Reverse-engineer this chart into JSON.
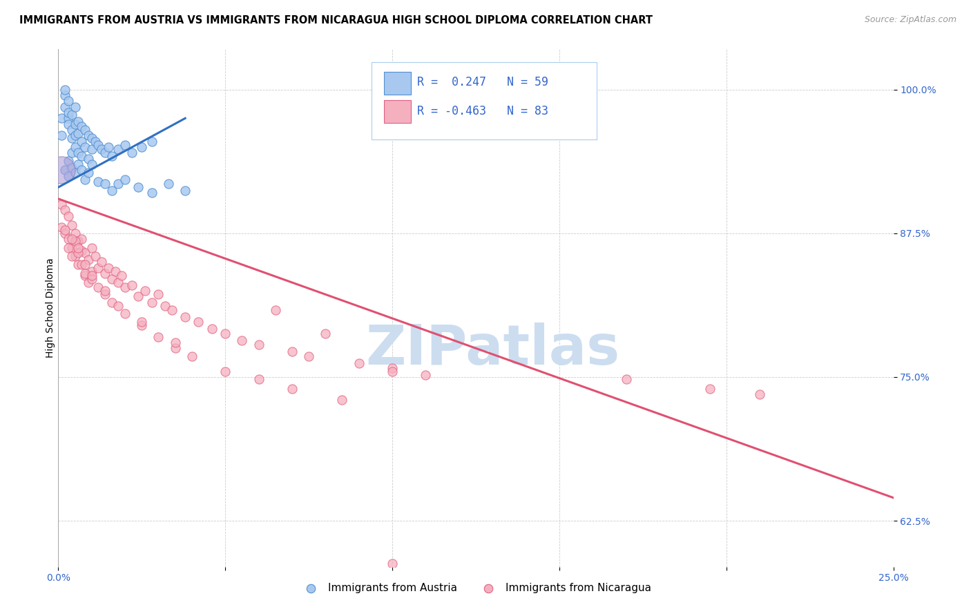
{
  "title": "IMMIGRANTS FROM AUSTRIA VS IMMIGRANTS FROM NICARAGUA HIGH SCHOOL DIPLOMA CORRELATION CHART",
  "source": "Source: ZipAtlas.com",
  "ylabel": "High School Diploma",
  "ytick_labels": [
    "62.5%",
    "75.0%",
    "87.5%",
    "100.0%"
  ],
  "ytick_values": [
    0.625,
    0.75,
    0.875,
    1.0
  ],
  "xlim": [
    0.0,
    0.25
  ],
  "ylim": [
    0.585,
    1.035
  ],
  "austria_R": 0.247,
  "austria_N": 59,
  "nicaragua_R": -0.463,
  "nicaragua_N": 83,
  "austria_color": "#a8c8f0",
  "nicaragua_color": "#f5b0c0",
  "austria_edge_color": "#5090d0",
  "nicaragua_edge_color": "#e06080",
  "austria_line_color": "#3070c0",
  "nicaragua_line_color": "#e05070",
  "watermark_text": "ZIPatlas",
  "watermark_color": "#ccddf0",
  "legend_text_color": "#3366cc",
  "austria_x": [
    0.001,
    0.001,
    0.002,
    0.002,
    0.002,
    0.003,
    0.003,
    0.003,
    0.003,
    0.004,
    0.004,
    0.004,
    0.004,
    0.005,
    0.005,
    0.005,
    0.005,
    0.006,
    0.006,
    0.006,
    0.007,
    0.007,
    0.007,
    0.008,
    0.008,
    0.009,
    0.009,
    0.01,
    0.01,
    0.011,
    0.012,
    0.013,
    0.014,
    0.015,
    0.016,
    0.018,
    0.02,
    0.022,
    0.025,
    0.028,
    0.002,
    0.003,
    0.003,
    0.004,
    0.005,
    0.006,
    0.007,
    0.008,
    0.009,
    0.01,
    0.012,
    0.014,
    0.016,
    0.018,
    0.02,
    0.024,
    0.028,
    0.033,
    0.038
  ],
  "austria_y": [
    0.96,
    0.975,
    0.985,
    0.995,
    1.0,
    0.975,
    0.99,
    0.98,
    0.97,
    0.965,
    0.978,
    0.958,
    0.945,
    0.97,
    0.96,
    0.985,
    0.95,
    0.972,
    0.962,
    0.945,
    0.968,
    0.955,
    0.942,
    0.965,
    0.95,
    0.96,
    0.94,
    0.958,
    0.948,
    0.955,
    0.952,
    0.948,
    0.945,
    0.95,
    0.942,
    0.948,
    0.952,
    0.945,
    0.95,
    0.955,
    0.93,
    0.925,
    0.938,
    0.932,
    0.928,
    0.935,
    0.93,
    0.922,
    0.928,
    0.935,
    0.92,
    0.918,
    0.912,
    0.918,
    0.922,
    0.915,
    0.91,
    0.918,
    0.912
  ],
  "austria_big_x": [
    0.001
  ],
  "austria_big_y": [
    0.93
  ],
  "austria_big_s": [
    800
  ],
  "nicaragua_x": [
    0.001,
    0.001,
    0.002,
    0.002,
    0.003,
    0.003,
    0.004,
    0.004,
    0.005,
    0.005,
    0.006,
    0.006,
    0.007,
    0.007,
    0.008,
    0.008,
    0.009,
    0.009,
    0.01,
    0.01,
    0.011,
    0.012,
    0.013,
    0.014,
    0.015,
    0.016,
    0.017,
    0.018,
    0.019,
    0.02,
    0.022,
    0.024,
    0.026,
    0.028,
    0.03,
    0.032,
    0.034,
    0.038,
    0.042,
    0.046,
    0.05,
    0.055,
    0.06,
    0.065,
    0.07,
    0.075,
    0.08,
    0.09,
    0.1,
    0.11,
    0.003,
    0.004,
    0.005,
    0.006,
    0.007,
    0.008,
    0.01,
    0.012,
    0.014,
    0.016,
    0.02,
    0.025,
    0.03,
    0.035,
    0.04,
    0.05,
    0.06,
    0.07,
    0.085,
    0.1,
    0.002,
    0.004,
    0.006,
    0.008,
    0.01,
    0.014,
    0.018,
    0.025,
    0.035,
    0.17,
    0.195,
    0.21,
    0.1
  ],
  "nicaragua_y": [
    0.9,
    0.88,
    0.895,
    0.875,
    0.89,
    0.87,
    0.882,
    0.862,
    0.875,
    0.855,
    0.868,
    0.848,
    0.86,
    0.87,
    0.858,
    0.838,
    0.852,
    0.832,
    0.862,
    0.842,
    0.855,
    0.845,
    0.85,
    0.84,
    0.845,
    0.835,
    0.842,
    0.832,
    0.838,
    0.828,
    0.83,
    0.82,
    0.825,
    0.815,
    0.822,
    0.812,
    0.808,
    0.802,
    0.798,
    0.792,
    0.788,
    0.782,
    0.778,
    0.808,
    0.772,
    0.768,
    0.788,
    0.762,
    0.758,
    0.752,
    0.862,
    0.855,
    0.868,
    0.858,
    0.848,
    0.84,
    0.835,
    0.828,
    0.822,
    0.815,
    0.805,
    0.795,
    0.785,
    0.775,
    0.768,
    0.755,
    0.748,
    0.74,
    0.73,
    0.755,
    0.878,
    0.87,
    0.862,
    0.848,
    0.838,
    0.825,
    0.812,
    0.798,
    0.78,
    0.748,
    0.74,
    0.735,
    0.588
  ],
  "austria_trendline_x": [
    0.0,
    0.038
  ],
  "austria_trendline_y": [
    0.915,
    0.975
  ],
  "nicaragua_trendline_x": [
    0.0,
    0.25
  ],
  "nicaragua_trendline_y": [
    0.905,
    0.645
  ]
}
